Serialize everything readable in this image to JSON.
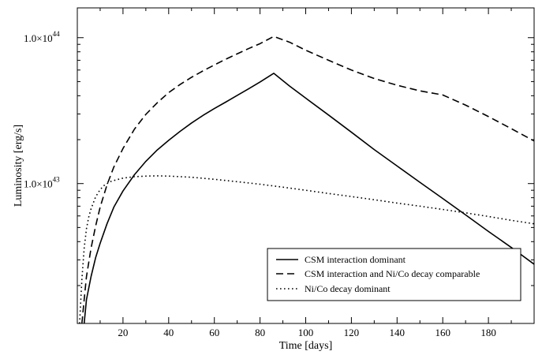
{
  "chart_data": {
    "type": "line",
    "title": "",
    "xlabel": "Time [days]",
    "ylabel": "Luminosity [erg/s]",
    "xlim": [
      0,
      200
    ],
    "ylim": [
      1.1e+42,
      1.6e+44
    ],
    "yscale": "log",
    "xticks": [
      20,
      40,
      60,
      80,
      100,
      120,
      140,
      160,
      180
    ],
    "xtick_labels": [
      "20",
      "40",
      "60",
      "80",
      "100",
      "120",
      "140",
      "160",
      "180"
    ],
    "yticks": [
      {
        "value": 1e+43,
        "mantissa": "1.0×10",
        "exponent": "43"
      },
      {
        "value": 1e+44,
        "mantissa": "1.0×10",
        "exponent": "44"
      }
    ],
    "grid": false,
    "legend_position": "bottom-right",
    "series": [
      {
        "name": "CSM interaction dominant",
        "style": "solid",
        "color": "#000000",
        "points": [
          [
            3,
            1.1e+42
          ],
          [
            4,
            1.6e+42
          ],
          [
            6,
            2.3e+42
          ],
          [
            8,
            3.1e+42
          ],
          [
            10,
            3.9e+42
          ],
          [
            13,
            5.3e+42
          ],
          [
            16,
            6.9e+42
          ],
          [
            20,
            8.9e+42
          ],
          [
            25,
            1.15e+43
          ],
          [
            30,
            1.42e+43
          ],
          [
            35,
            1.7e+43
          ],
          [
            40,
            1.98e+43
          ],
          [
            45,
            2.28e+43
          ],
          [
            50,
            2.6e+43
          ],
          [
            55,
            2.93e+43
          ],
          [
            60,
            3.27e+43
          ],
          [
            65,
            3.62e+43
          ],
          [
            70,
            4.02e+43
          ],
          [
            75,
            4.46e+43
          ],
          [
            80,
            4.97e+43
          ],
          [
            86,
            5.7e+43
          ],
          [
            93,
            4.65e+43
          ],
          [
            100,
            3.85e+43
          ],
          [
            110,
            2.95e+43
          ],
          [
            120,
            2.25e+43
          ],
          [
            130,
            1.71e+43
          ],
          [
            140,
            1.32e+43
          ],
          [
            150,
            1.02e+43
          ],
          [
            160,
            7.9e+42
          ],
          [
            170,
            6.1e+42
          ],
          [
            180,
            4.7e+42
          ],
          [
            190,
            3.65e+42
          ],
          [
            200,
            2.8e+42
          ]
        ]
      },
      {
        "name": "CSM interaction and Ni/Co decay comparable",
        "style": "dashed",
        "color": "#000000",
        "points": [
          [
            2,
            1.1e+42
          ],
          [
            3,
            1.6e+42
          ],
          [
            4,
            2.3e+42
          ],
          [
            6,
            3.6e+42
          ],
          [
            8,
            5.1e+42
          ],
          [
            10,
            6.9e+42
          ],
          [
            13,
            9.8e+42
          ],
          [
            16,
            1.3e+43
          ],
          [
            20,
            1.74e+43
          ],
          [
            25,
            2.36e+43
          ],
          [
            30,
            2.98e+43
          ],
          [
            35,
            3.58e+43
          ],
          [
            40,
            4.2e+43
          ],
          [
            45,
            4.78e+43
          ],
          [
            50,
            5.35e+43
          ],
          [
            55,
            5.92e+43
          ],
          [
            60,
            6.5e+43
          ],
          [
            65,
            7.12e+43
          ],
          [
            70,
            7.75e+43
          ],
          [
            75,
            8.42e+43
          ],
          [
            80,
            9.1e+43
          ],
          [
            86,
            1.02e+44
          ],
          [
            93,
            9.3e+43
          ],
          [
            100,
            8.2e+43
          ],
          [
            110,
            7e+43
          ],
          [
            120,
            6e+43
          ],
          [
            130,
            5.25e+43
          ],
          [
            140,
            4.72e+43
          ],
          [
            150,
            4.32e+43
          ],
          [
            160,
            4.05e+43
          ],
          [
            170,
            3.45e+43
          ],
          [
            180,
            2.88e+43
          ],
          [
            190,
            2.38e+43
          ],
          [
            200,
            1.96e+43
          ]
        ]
      },
      {
        "name": "Ni/Co decay dominant",
        "style": "dotted",
        "color": "#000000",
        "points": [
          [
            1,
            1.1e+42
          ],
          [
            2,
            2.2e+42
          ],
          [
            3,
            3.6e+42
          ],
          [
            4,
            4.9e+42
          ],
          [
            5,
            5.9e+42
          ],
          [
            6,
            6.7e+42
          ],
          [
            8,
            8.1e+42
          ],
          [
            10,
            9.1e+42
          ],
          [
            12,
            9.8e+42
          ],
          [
            15,
            1.04e+43
          ],
          [
            20,
            1.09e+43
          ],
          [
            25,
            1.115e+43
          ],
          [
            30,
            1.125e+43
          ],
          [
            35,
            1.13e+43
          ],
          [
            40,
            1.125e+43
          ],
          [
            50,
            1.105e+43
          ],
          [
            60,
            1.07e+43
          ],
          [
            70,
            1.03e+43
          ],
          [
            80,
            9.9e+42
          ],
          [
            90,
            9.45e+42
          ],
          [
            100,
            9e+42
          ],
          [
            110,
            8.55e+42
          ],
          [
            120,
            8.15e+42
          ],
          [
            130,
            7.75e+42
          ],
          [
            140,
            7.35e+42
          ],
          [
            150,
            7e+42
          ],
          [
            160,
            6.65e+42
          ],
          [
            170,
            6.3e+42
          ],
          [
            180,
            5.95e+42
          ],
          [
            190,
            5.6e+42
          ],
          [
            200,
            5.3e+42
          ]
        ]
      }
    ]
  }
}
